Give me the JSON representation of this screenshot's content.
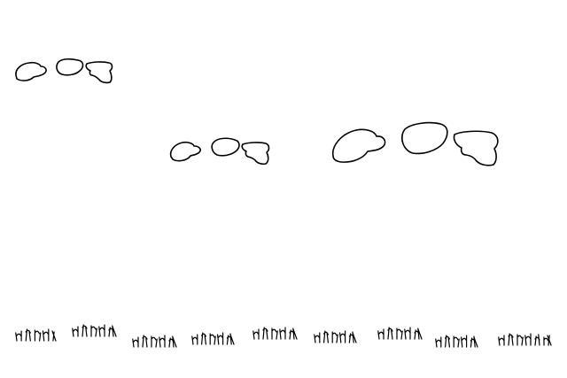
{
  "scene": {
    "description_label": "",
    "stroke_color": "#000000",
    "background_color": "#ffffff"
  }
}
